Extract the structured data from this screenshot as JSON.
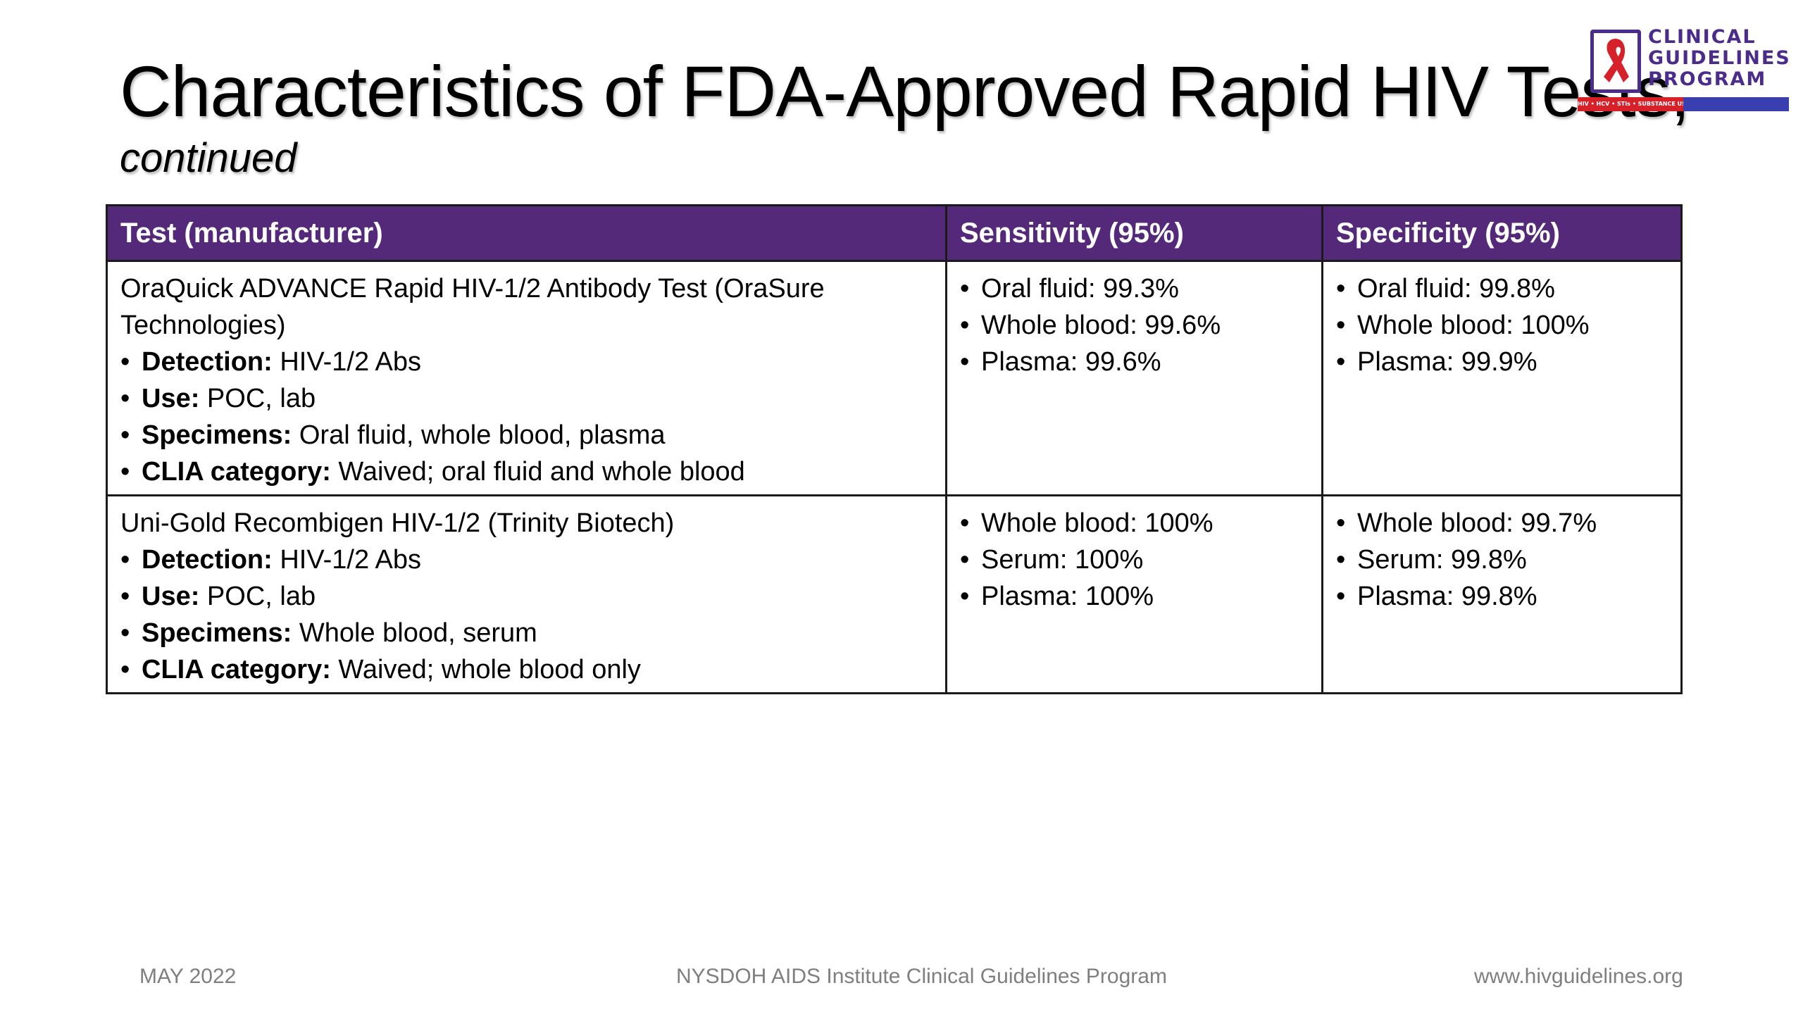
{
  "slide": {
    "title": "Characteristics of FDA-Approved Rapid HIV Tests,",
    "subtitle": "continued"
  },
  "logo": {
    "line1": "CLINICAL",
    "line2": "GUIDELINES",
    "line3": "PROGRAM",
    "tagline": "HIV • HCV • STIs • SUBSTANCE USE • LGBT HEALTH",
    "icon": "red-ribbon-icon",
    "colors": {
      "purple": "#4b2c8a",
      "red": "#d6202a",
      "blue": "#3a3fb0"
    }
  },
  "table": {
    "header_color": "#55297a",
    "headers": [
      "Test (manufacturer)",
      "Sensitivity (95%)",
      "Specificity (95%)"
    ],
    "rows": [
      {
        "test_name": "OraQuick ADVANCE Rapid HIV-1/2 Antibody Test (OraSure Technologies)",
        "details": [
          {
            "label": "Detection:",
            "value": " HIV-1/2 Abs"
          },
          {
            "label": "Use:",
            "value": " POC, lab"
          },
          {
            "label": "Specimens:",
            "value": " Oral fluid, whole blood, plasma"
          },
          {
            "label": "CLIA category:",
            "value": " Waived; oral fluid and whole blood"
          }
        ],
        "sensitivity": [
          "Oral fluid: 99.3%",
          "Whole blood: 99.6%",
          "Plasma: 99.6%"
        ],
        "specificity": [
          "Oral fluid: 99.8%",
          "Whole blood: 100%",
          "Plasma: 99.9%"
        ]
      },
      {
        "test_name": "Uni-Gold Recombigen HIV-1/2 (Trinity Biotech)",
        "details": [
          {
            "label": "Detection:",
            "value": " HIV-1/2 Abs"
          },
          {
            "label": "Use:",
            "value": " POC, lab"
          },
          {
            "label": "Specimens:",
            "value": " Whole blood, serum"
          },
          {
            "label": "CLIA category:",
            "value": " Waived; whole blood only"
          }
        ],
        "sensitivity": [
          "Whole blood: 100%",
          "Serum: 100%",
          "Plasma: 100%"
        ],
        "specificity": [
          "Whole blood: 99.7%",
          "Serum: 99.8%",
          "Plasma: 99.8%"
        ]
      }
    ]
  },
  "footer": {
    "date": "MAY 2022",
    "org": "NYSDOH AIDS Institute Clinical Guidelines Program",
    "url": "www.hivguidelines.org"
  }
}
